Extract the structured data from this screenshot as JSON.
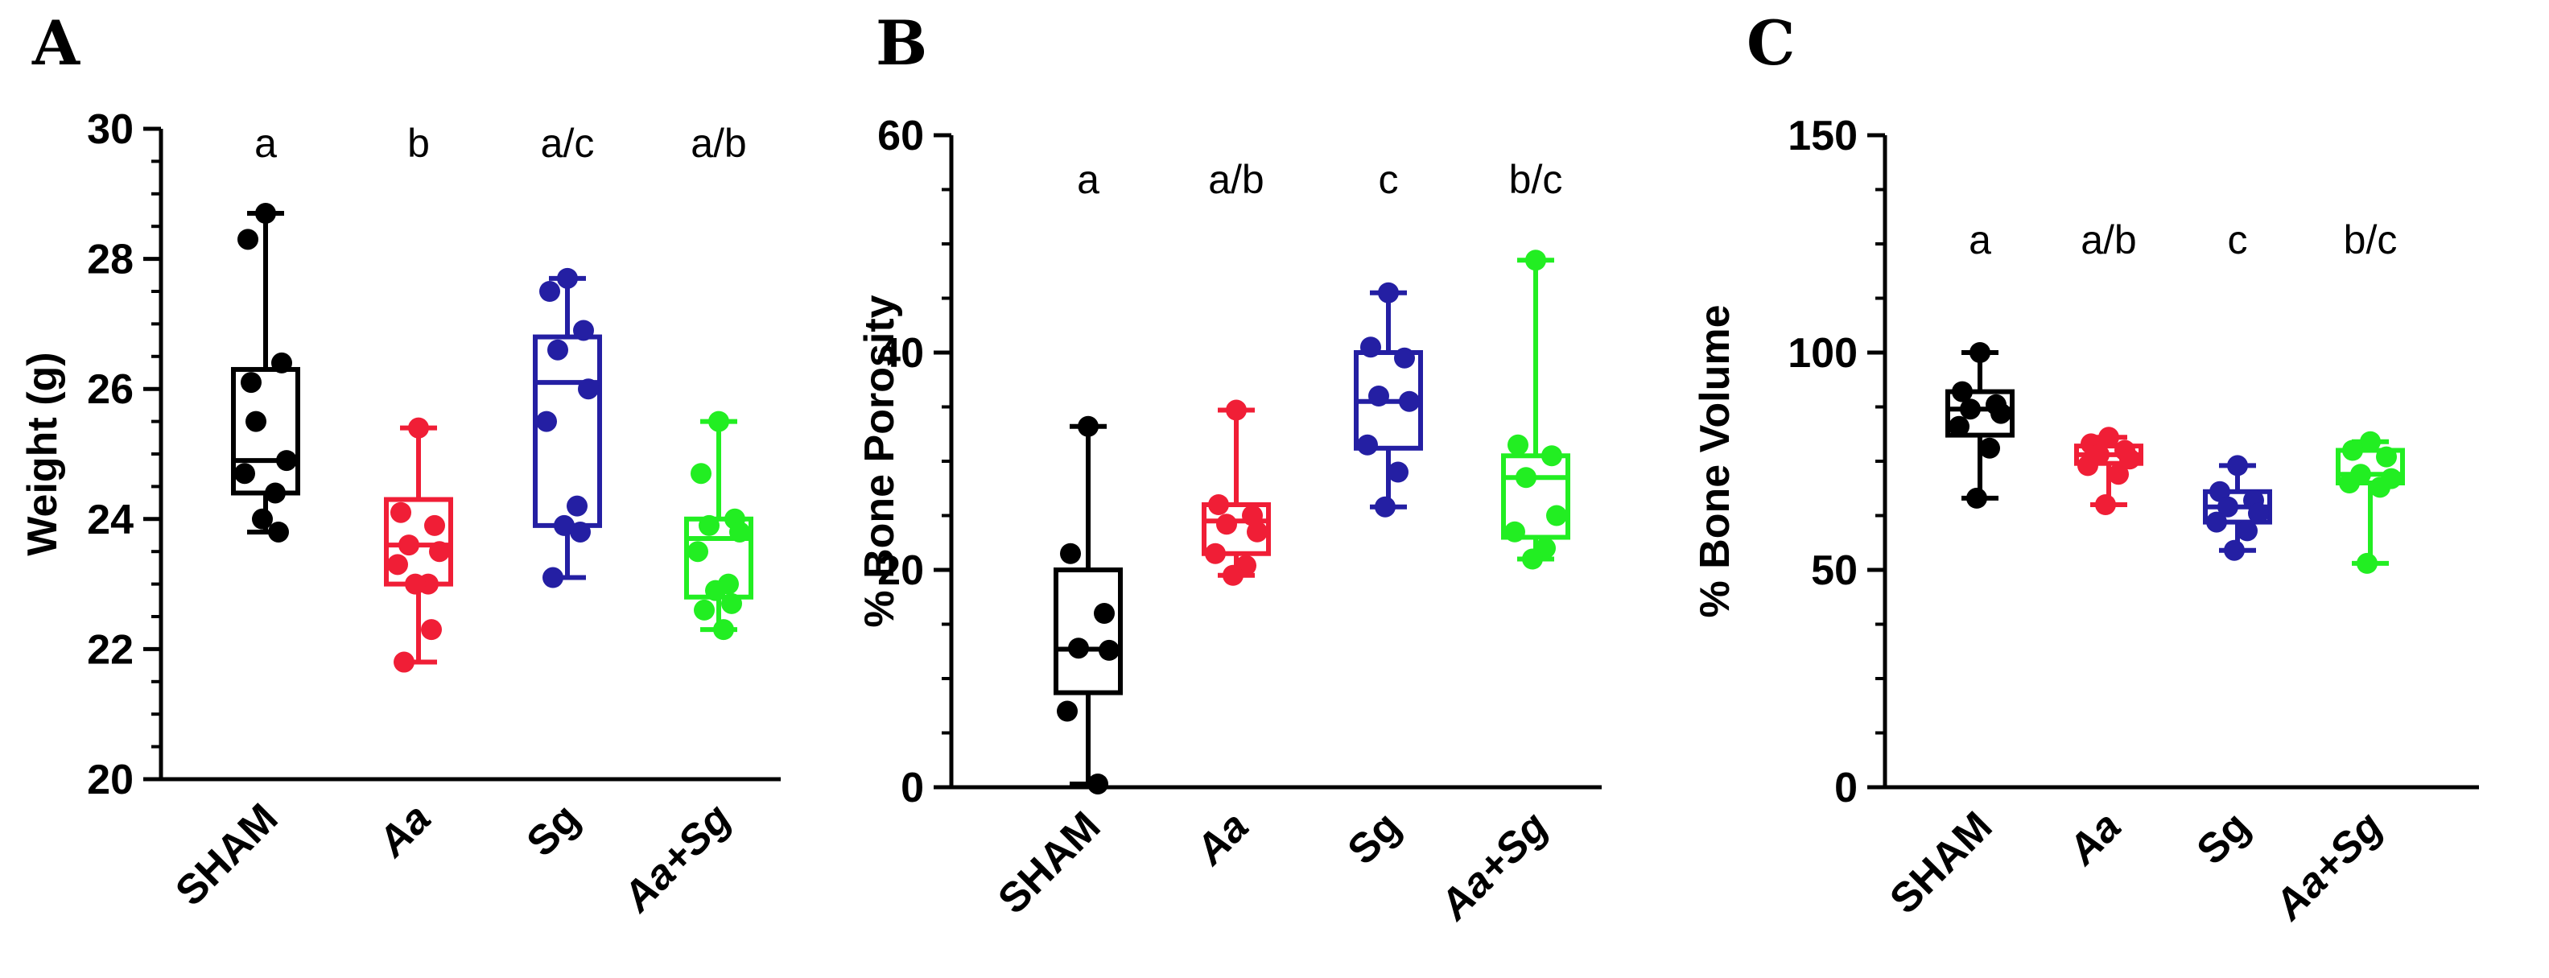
{
  "colors": {
    "axis": "#000000",
    "groups": [
      "#000000",
      "#f01e36",
      "#241fa3",
      "#22ee22"
    ]
  },
  "chart_data": [
    {
      "panel": "A",
      "type": "box",
      "title": "",
      "xlabel": "",
      "ylabel": "Weight (g)",
      "ylim": [
        20,
        30
      ],
      "yticks": [
        20,
        22,
        24,
        26,
        28,
        30
      ],
      "categories": [
        "SHAM",
        "Aa",
        "Sg",
        "Aa+Sg"
      ],
      "category_italic": [
        false,
        true,
        false,
        true
      ],
      "significance": [
        "a",
        "b",
        "a/c",
        "a/b"
      ],
      "series": [
        {
          "name": "SHAM",
          "min": 23.8,
          "q1": 24.4,
          "median": 24.9,
          "q3": 26.3,
          "max": 28.7,
          "points": [
            28.7,
            28.3,
            26.4,
            25.5,
            24.9,
            24.7,
            24.4,
            24.0,
            23.8,
            26.1
          ]
        },
        {
          "name": "Aa",
          "min": 21.8,
          "q1": 23.0,
          "median": 23.6,
          "q3": 24.3,
          "max": 25.4,
          "points": [
            25.4,
            24.1,
            23.9,
            23.6,
            23.5,
            23.3,
            23.0,
            23.0,
            22.3,
            21.8
          ]
        },
        {
          "name": "Sg",
          "min": 23.1,
          "q1": 23.9,
          "median": 26.1,
          "q3": 26.8,
          "max": 27.7,
          "points": [
            27.7,
            27.5,
            26.9,
            26.6,
            26.0,
            25.5,
            24.2,
            23.9,
            23.8,
            23.1
          ]
        },
        {
          "name": "Aa+Sg",
          "min": 22.3,
          "q1": 22.8,
          "median": 23.7,
          "q3": 24.0,
          "max": 25.5,
          "points": [
            25.5,
            24.7,
            24.0,
            23.9,
            23.8,
            23.5,
            23.0,
            22.9,
            22.7,
            22.6,
            22.3
          ]
        }
      ]
    },
    {
      "panel": "B",
      "type": "box",
      "title": "",
      "xlabel": "",
      "ylabel": "% Bone Porosity",
      "ylim": [
        0,
        60
      ],
      "yticks": [
        0,
        20,
        40,
        60
      ],
      "categories": [
        "SHAM",
        "Aa",
        "Sg",
        "Aa+Sg"
      ],
      "category_italic": [
        false,
        true,
        false,
        true
      ],
      "significance": [
        "a",
        "a/b",
        "c",
        "b/c"
      ],
      "series": [
        {
          "name": "SHAM",
          "min": 0.3,
          "q1": 8.7,
          "median": 12.7,
          "q3": 20.0,
          "max": 33.2,
          "points": [
            33.2,
            21.5,
            16.0,
            12.8,
            12.6,
            7.0,
            0.3
          ]
        },
        {
          "name": "Aa",
          "min": 19.5,
          "q1": 21.5,
          "median": 24.5,
          "q3": 26.0,
          "max": 34.7,
          "points": [
            34.7,
            26.0,
            25.0,
            24.2,
            23.5,
            21.5,
            20.4,
            19.5
          ]
        },
        {
          "name": "Sg",
          "min": 25.8,
          "q1": 31.2,
          "median": 35.5,
          "q3": 40.0,
          "max": 45.5,
          "points": [
            45.5,
            40.5,
            39.5,
            36.0,
            35.5,
            31.5,
            29.0,
            25.8
          ]
        },
        {
          "name": "Aa+Sg",
          "min": 21.0,
          "q1": 23.0,
          "median": 28.5,
          "q3": 30.5,
          "max": 48.5,
          "points": [
            48.5,
            31.5,
            30.5,
            28.5,
            25.0,
            23.5,
            22.0,
            21.0
          ]
        }
      ]
    },
    {
      "panel": "C",
      "type": "box",
      "title": "",
      "xlabel": "",
      "ylabel": "% Bone Volume",
      "ylim": [
        0,
        150
      ],
      "yticks": [
        0,
        50,
        100,
        150
      ],
      "categories": [
        "SHAM",
        "Aa",
        "Sg",
        "Aa+Sg"
      ],
      "category_italic": [
        false,
        true,
        false,
        true
      ],
      "significance": [
        "a",
        "a/b",
        "c",
        "b/c"
      ],
      "series": [
        {
          "name": "SHAM",
          "min": 66.5,
          "q1": 81.0,
          "median": 87.0,
          "q3": 91.0,
          "max": 100.0,
          "points": [
            100.0,
            91.0,
            88.0,
            87.0,
            86.0,
            83.0,
            78.0,
            66.5
          ]
        },
        {
          "name": "Aa",
          "min": 65.0,
          "q1": 74.5,
          "median": 76.5,
          "q3": 78.5,
          "max": 80.5,
          "points": [
            80.5,
            79.0,
            77.5,
            76.5,
            75.5,
            74.0,
            72.0,
            65.0
          ]
        },
        {
          "name": "Sg",
          "min": 54.5,
          "q1": 61.0,
          "median": 64.5,
          "q3": 68.0,
          "max": 74.0,
          "points": [
            74.0,
            68.0,
            66.0,
            64.5,
            63.0,
            61.0,
            59.0,
            54.5
          ]
        },
        {
          "name": "Aa+Sg",
          "min": 51.5,
          "q1": 70.0,
          "median": 72.0,
          "q3": 77.5,
          "max": 79.5,
          "points": [
            79.5,
            77.5,
            76.0,
            72.0,
            71.0,
            70.0,
            69.0,
            51.5
          ]
        }
      ]
    }
  ]
}
